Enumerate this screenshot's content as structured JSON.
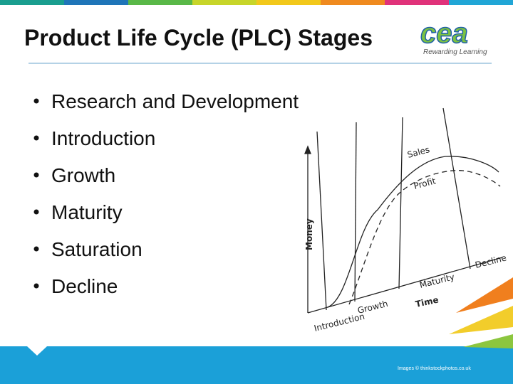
{
  "header": {
    "title": "Product Life Cycle (PLC) Stages",
    "logo": "cea",
    "logo_tagline": "Rewarding Learning"
  },
  "bullets": [
    "Research and Development",
    "Introduction",
    "Growth",
    "Maturity",
    "Saturation",
    "Decline"
  ],
  "figure": {
    "y_axis": "Money",
    "x_axis": "Time",
    "curves": [
      "Sales",
      "Profit"
    ],
    "stages": [
      "Introduction",
      "Growth",
      "Maturity",
      "Decline"
    ]
  },
  "footer": {
    "credit": "Images © thinkstockphotos.co.uk"
  }
}
